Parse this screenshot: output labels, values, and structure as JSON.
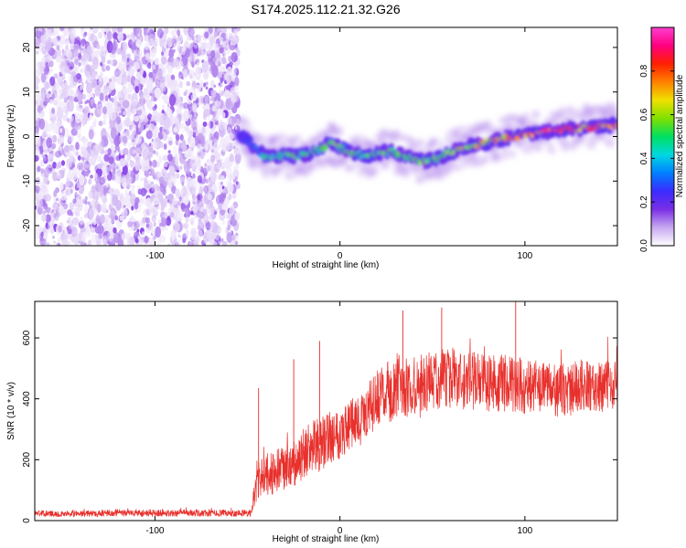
{
  "chart_data": [
    {
      "type": "heatmap",
      "title": "S174.2025.112.21.32.G26",
      "xlabel": "Height of straight line (km)",
      "ylabel": "Frequency (Hz)",
      "xlim": [
        -165,
        150
      ],
      "ylim": [
        -24.5,
        24.5
      ],
      "xticks": [
        -100,
        0,
        100
      ],
      "yticks": [
        -20,
        -10,
        0,
        10,
        20
      ],
      "noise_region_x": [
        -165,
        -55
      ],
      "ridge": {
        "x": [
          -55,
          -50,
          -45,
          -40,
          -35,
          -30,
          -25,
          -20,
          -15,
          -10,
          -5,
          0,
          5,
          10,
          15,
          20,
          25,
          30,
          35,
          40,
          45,
          50,
          55,
          60,
          65,
          70,
          75,
          80,
          85,
          90,
          95,
          100,
          105,
          110,
          115,
          120,
          125,
          130,
          135,
          140,
          145,
          150
        ],
        "frequency": [
          0,
          -1,
          -3,
          -4.5,
          -4.5,
          -4.2,
          -4.5,
          -4.2,
          -3.8,
          -2.5,
          -1.5,
          -2.5,
          -3.5,
          -4,
          -4.2,
          -3.8,
          -3.2,
          -3.6,
          -4.5,
          -5.2,
          -5.5,
          -5.2,
          -4.5,
          -3.5,
          -2.8,
          -2.2,
          -1.8,
          -1.2,
          -0.8,
          -0.3,
          0,
          0.4,
          0.7,
          1,
          1.3,
          1.5,
          1.7,
          1.9,
          2.1,
          2.3,
          2.5,
          2.6
        ],
        "amplitude": [
          0.2,
          0.3,
          0.35,
          0.5,
          0.5,
          0.55,
          0.55,
          0.5,
          0.55,
          0.6,
          0.65,
          0.6,
          0.55,
          0.5,
          0.55,
          0.55,
          0.6,
          0.6,
          0.55,
          0.55,
          0.6,
          0.55,
          0.6,
          0.6,
          0.65,
          0.65,
          0.7,
          0.7,
          0.75,
          0.75,
          0.8,
          0.8,
          0.85,
          0.9,
          0.9,
          0.92,
          0.9,
          0.85,
          0.82,
          0.85,
          0.8,
          0.75
        ]
      },
      "colorbar": {
        "label": "Normalized spectral amplitude",
        "range": [
          0,
          1
        ],
        "ticks": [
          0.0,
          0.2,
          0.4,
          0.6,
          0.8
        ],
        "tick_labels": [
          "0.0",
          "0.2",
          "0.4",
          "0.6",
          "0.8"
        ],
        "colors": [
          "#ffffff",
          "#c8a8f0",
          "#7a2ee6",
          "#3a2cff",
          "#0080ff",
          "#00d8e0",
          "#00e060",
          "#80e000",
          "#f0e000",
          "#ff8000",
          "#ff2000",
          "#ff0080",
          "#ff40d0"
        ]
      }
    },
    {
      "type": "line",
      "xlabel": "Height of straight line (km)",
      "ylabel": "SNR (10 * v/v)",
      "xlim": [
        -165,
        150
      ],
      "ylim": [
        0,
        720
      ],
      "xticks": [
        -100,
        0,
        100
      ],
      "yticks": [
        0,
        200,
        400,
        600
      ],
      "color": "#e8302c",
      "envelope": {
        "x": [
          -165,
          -150,
          -120,
          -90,
          -60,
          -48,
          -45,
          -40,
          -35,
          -30,
          -25,
          -20,
          -15,
          -10,
          -5,
          0,
          5,
          10,
          15,
          20,
          25,
          30,
          40,
          50,
          60,
          70,
          80,
          90,
          100,
          110,
          120,
          130,
          140,
          150
        ],
        "mean": [
          25,
          22,
          25,
          25,
          24,
          25,
          130,
          150,
          160,
          165,
          180,
          215,
          240,
          250,
          280,
          290,
          310,
          330,
          360,
          400,
          420,
          430,
          440,
          460,
          470,
          460,
          450,
          450,
          440,
          435,
          430,
          440,
          440,
          440
        ],
        "spread": [
          10,
          10,
          12,
          12,
          12,
          12,
          70,
          70,
          75,
          80,
          80,
          85,
          90,
          90,
          90,
          90,
          90,
          90,
          90,
          95,
          100,
          100,
          100,
          100,
          100,
          100,
          95,
          95,
          90,
          90,
          90,
          90,
          85,
          85
        ]
      },
      "spikes": [
        {
          "x": -44,
          "y": 435
        },
        {
          "x": -25,
          "y": 530
        },
        {
          "x": -11,
          "y": 590
        },
        {
          "x": 34,
          "y": 690
        },
        {
          "x": 55,
          "y": 700
        },
        {
          "x": 95,
          "y": 720
        }
      ]
    }
  ]
}
